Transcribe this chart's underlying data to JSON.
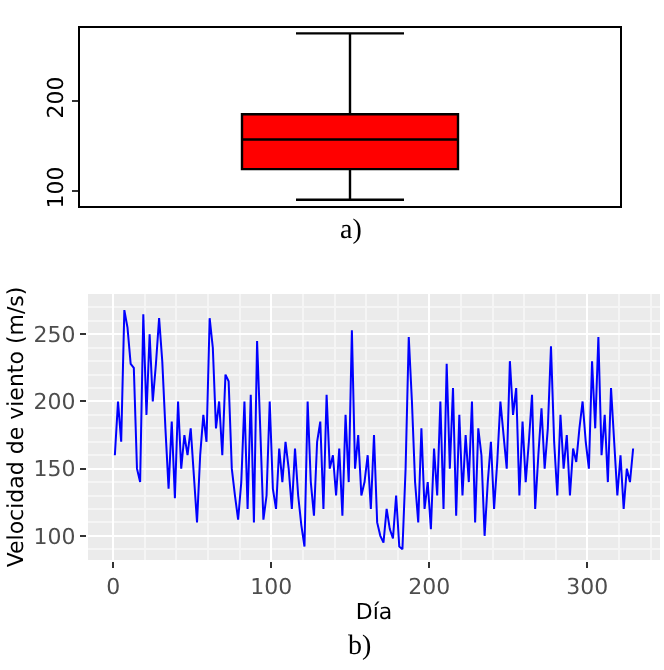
{
  "chart_data": [
    {
      "type": "box",
      "categories": [
        null
      ],
      "color": "#ff0000",
      "ylim": [
        83,
        281
      ],
      "yticks": [
        100,
        200
      ],
      "grid": false,
      "legend": false,
      "annotations": [
        "a)"
      ],
      "boxes": [
        {
          "low": 90,
          "q1": 124,
          "median": 157,
          "q3": 185,
          "high": 275
        }
      ]
    },
    {
      "type": "line",
      "xlabel": "Día",
      "ylabel": "Velocidad de viento (m/s)",
      "xlim": [
        -16,
        346
      ],
      "xticks": [
        0,
        100,
        200,
        300
      ],
      "ylim": [
        82,
        280
      ],
      "yticks": [
        100,
        150,
        200,
        250
      ],
      "grid": true,
      "legend": false,
      "marker": "none",
      "line_style": "solid",
      "annotations": [
        "b)"
      ],
      "x": [
        1,
        3,
        5,
        7,
        9,
        11,
        13,
        15,
        17,
        19,
        21,
        23,
        25,
        27,
        29,
        31,
        33,
        35,
        37,
        39,
        41,
        43,
        45,
        47,
        49,
        51,
        53,
        55,
        57,
        59,
        61,
        63,
        65,
        67,
        69,
        71,
        73,
        75,
        77,
        79,
        81,
        83,
        85,
        87,
        89,
        91,
        93,
        95,
        97,
        99,
        101,
        103,
        105,
        107,
        109,
        111,
        113,
        115,
        117,
        119,
        121,
        123,
        125,
        127,
        129,
        131,
        133,
        135,
        137,
        139,
        141,
        143,
        145,
        147,
        149,
        151,
        153,
        155,
        157,
        159,
        161,
        163,
        165,
        167,
        169,
        171,
        173,
        175,
        177,
        179,
        181,
        183,
        185,
        187,
        189,
        191,
        193,
        195,
        197,
        199,
        201,
        203,
        205,
        207,
        209,
        211,
        213,
        215,
        217,
        219,
        221,
        223,
        225,
        227,
        229,
        231,
        233,
        235,
        237,
        239,
        241,
        243,
        245,
        247,
        249,
        251,
        253,
        255,
        257,
        259,
        261,
        263,
        265,
        267,
        269,
        271,
        273,
        275,
        277,
        279,
        281,
        283,
        285,
        287,
        289,
        291,
        293,
        295,
        297,
        299,
        301,
        303,
        305,
        307,
        309,
        311,
        313,
        315,
        317,
        319,
        321,
        323,
        325,
        327,
        329
      ],
      "series": [
        {
          "color": "#0000ff",
          "values": [
            160,
            200,
            170,
            268,
            255,
            228,
            225,
            150,
            140,
            265,
            190,
            250,
            200,
            228,
            262,
            230,
            180,
            135,
            185,
            128,
            200,
            150,
            175,
            160,
            180,
            145,
            110,
            160,
            190,
            170,
            262,
            240,
            180,
            200,
            160,
            220,
            215,
            150,
            130,
            112,
            140,
            200,
            120,
            205,
            110,
            245,
            180,
            112,
            130,
            200,
            135,
            120,
            165,
            140,
            170,
            150,
            120,
            165,
            130,
            108,
            92,
            200,
            140,
            115,
            170,
            185,
            120,
            205,
            150,
            160,
            130,
            165,
            115,
            190,
            140,
            253,
            150,
            175,
            130,
            140,
            160,
            120,
            175,
            110,
            100,
            95,
            120,
            105,
            98,
            130,
            92,
            90,
            150,
            248,
            200,
            140,
            110,
            180,
            120,
            140,
            105,
            165,
            130,
            200,
            120,
            228,
            150,
            210,
            115,
            190,
            130,
            175,
            140,
            200,
            110,
            180,
            160,
            100,
            140,
            170,
            120,
            155,
            200,
            175,
            150,
            230,
            190,
            210,
            130,
            185,
            140,
            170,
            205,
            120,
            160,
            195,
            150,
            180,
            241,
            170,
            130,
            190,
            150,
            175,
            130,
            165,
            155,
            180,
            200,
            170,
            150,
            230,
            180,
            248,
            160,
            190,
            140,
            210,
            170,
            130,
            160,
            120,
            150,
            140,
            165
          ]
        }
      ]
    }
  ]
}
